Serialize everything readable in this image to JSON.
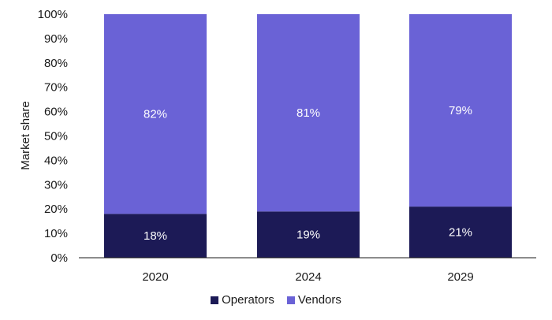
{
  "chart_data": {
    "type": "bar",
    "stacked": true,
    "categories": [
      "2020",
      "2024",
      "2029"
    ],
    "series": [
      {
        "name": "Operators",
        "values": [
          18,
          19,
          21
        ],
        "labels": [
          "18%",
          "19%",
          "21%"
        ],
        "color": "#1c1a56"
      },
      {
        "name": "Vendors",
        "values": [
          82,
          81,
          79
        ],
        "labels": [
          "82%",
          "81%",
          "79%"
        ],
        "color": "#6a62d6"
      }
    ],
    "ylabel": "Market share",
    "ylim": [
      0,
      100
    ],
    "yticks": [
      "0%",
      "10%",
      "20%",
      "30%",
      "40%",
      "50%",
      "60%",
      "70%",
      "80%",
      "90%",
      "100%"
    ],
    "grid": false,
    "legend": "bottom"
  }
}
